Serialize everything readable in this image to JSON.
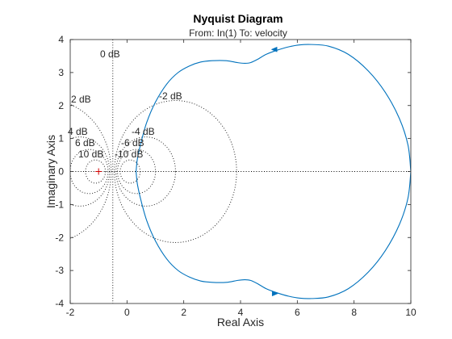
{
  "chart_data": {
    "type": "line",
    "title": "Nyquist Diagram",
    "subtitle": "From: In(1)  To: velocity",
    "xlabel": "Real Axis",
    "ylabel": "Imaginary Axis",
    "xlim": [
      -2,
      10
    ],
    "ylim": [
      -4,
      4
    ],
    "xticks": [
      "-2",
      "0",
      "2",
      "4",
      "6",
      "8",
      "10"
    ],
    "yticks": [
      "-4",
      "-3",
      "-2",
      "-1",
      "0",
      "1",
      "2",
      "3",
      "4"
    ],
    "grid": "M-circles",
    "m_circles": [
      {
        "db": 0,
        "label": "0 dB"
      },
      {
        "db": 2,
        "label": "2 dB"
      },
      {
        "db": -2,
        "label": "-2 dB"
      },
      {
        "db": 4,
        "label": "4 dB"
      },
      {
        "db": -4,
        "label": "-4 dB"
      },
      {
        "db": 6,
        "label": "6 dB"
      },
      {
        "db": -6,
        "label": "-6 dB"
      },
      {
        "db": 10,
        "label": "10 dB"
      },
      {
        "db": -10,
        "label": "-10 dB"
      }
    ],
    "critical_point": [
      -1,
      0
    ],
    "series": [
      {
        "color": "#0072BD",
        "x": [
          10.0,
          9.9,
          9.6,
          9.1,
          8.5,
          7.8,
          7.1,
          6.5,
          6.1,
          5.7,
          5.3,
          4.9,
          4.6,
          4.35,
          4.15,
          3.9,
          3.5,
          3.0,
          2.6,
          2.2,
          1.8,
          1.4,
          1.0,
          0.7,
          0.5,
          0.37,
          0.33,
          0.32
        ],
        "y": [
          0.0,
          0.8,
          1.6,
          2.4,
          3.05,
          3.55,
          3.8,
          3.85,
          3.84,
          3.78,
          3.68,
          3.55,
          3.4,
          3.3,
          3.28,
          3.3,
          3.36,
          3.36,
          3.32,
          3.2,
          3.0,
          2.65,
          2.1,
          1.5,
          0.9,
          0.4,
          0.1,
          0.0
        ]
      }
    ],
    "arrows": [
      {
        "x": 5.2,
        "y": 3.7,
        "direction": "left"
      },
      {
        "x": 5.2,
        "y": -3.7,
        "direction": "right"
      }
    ]
  }
}
